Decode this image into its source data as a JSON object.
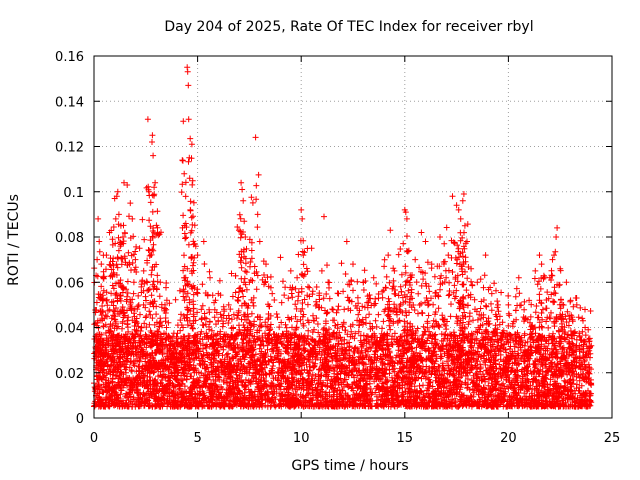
{
  "chart_data": {
    "type": "scatter",
    "title": "Day 204 of 2025, Rate Of TEC Index for receiver rbyl",
    "xlabel": "GPS time / hours",
    "ylabel": "ROTI / TECUs",
    "xlim": [
      0,
      25
    ],
    "ylim": [
      0,
      0.16
    ],
    "x_ticks": [
      0,
      5,
      10,
      15,
      20,
      25
    ],
    "x_tick_labels": [
      "0",
      "5",
      "10",
      "15",
      "20",
      "25"
    ],
    "y_ticks": [
      0,
      0.02,
      0.04,
      0.06,
      0.08,
      0.1,
      0.12,
      0.14,
      0.16
    ],
    "y_tick_labels": [
      "0",
      "0.02",
      "0.04",
      "0.06",
      "0.08",
      "0.1",
      "0.12",
      "0.14",
      "0.16"
    ],
    "grid": true,
    "marker": "+",
    "marker_color": "#ff0000",
    "data_x_range": [
      0,
      24
    ],
    "baseline_band": [
      0.005,
      0.03
    ],
    "series": [
      {
        "name": "ROTI",
        "points": [
          [
            0.1,
            0.063
          ],
          [
            0.15,
            0.07
          ],
          [
            0.2,
            0.088
          ],
          [
            0.25,
            0.078
          ],
          [
            0.35,
            0.068
          ],
          [
            0.45,
            0.062
          ],
          [
            0.6,
            0.072
          ],
          [
            0.75,
            0.082
          ],
          [
            0.9,
            0.079
          ],
          [
            1.0,
            0.097
          ],
          [
            1.05,
            0.088
          ],
          [
            1.1,
            0.098
          ],
          [
            1.15,
            0.1
          ],
          [
            1.2,
            0.09
          ],
          [
            1.3,
            0.085
          ],
          [
            1.4,
            0.08
          ],
          [
            1.45,
            0.104
          ],
          [
            1.6,
            0.103
          ],
          [
            1.75,
            0.095
          ],
          [
            1.85,
            0.088
          ],
          [
            2.0,
            0.07
          ],
          [
            2.2,
            0.075
          ],
          [
            2.4,
            0.065
          ],
          [
            2.6,
            0.132
          ],
          [
            2.65,
            0.1
          ],
          [
            2.8,
            0.122
          ],
          [
            2.82,
            0.125
          ],
          [
            2.85,
            0.116
          ],
          [
            2.9,
            0.102
          ],
          [
            2.95,
            0.104
          ],
          [
            3.0,
            0.081
          ],
          [
            3.2,
            0.06
          ],
          [
            3.5,
            0.04
          ],
          [
            3.8,
            0.032
          ],
          [
            4.0,
            0.035
          ],
          [
            4.3,
            0.04
          ],
          [
            4.5,
            0.155
          ],
          [
            4.52,
            0.153
          ],
          [
            4.55,
            0.147
          ],
          [
            4.57,
            0.132
          ],
          [
            4.6,
            0.115
          ],
          [
            4.62,
            0.106
          ],
          [
            4.65,
            0.092
          ],
          [
            4.7,
            0.058
          ],
          [
            5.0,
            0.072
          ],
          [
            5.3,
            0.078
          ],
          [
            5.6,
            0.062
          ],
          [
            6.0,
            0.055
          ],
          [
            6.5,
            0.05
          ],
          [
            7.0,
            0.083
          ],
          [
            7.1,
            0.104
          ],
          [
            7.15,
            0.101
          ],
          [
            7.2,
            0.096
          ],
          [
            7.25,
            0.087
          ],
          [
            7.3,
            0.08
          ],
          [
            7.5,
            0.06
          ],
          [
            7.8,
            0.124
          ],
          [
            7.9,
            0.09
          ],
          [
            8.0,
            0.078
          ],
          [
            8.3,
            0.068
          ],
          [
            8.6,
            0.055
          ],
          [
            9.0,
            0.071
          ],
          [
            9.5,
            0.065
          ],
          [
            9.8,
            0.062
          ],
          [
            10.0,
            0.092
          ],
          [
            10.05,
            0.088
          ],
          [
            10.1,
            0.072
          ],
          [
            10.5,
            0.075
          ],
          [
            11.0,
            0.065
          ],
          [
            11.1,
            0.089
          ],
          [
            11.3,
            0.06
          ],
          [
            11.8,
            0.055
          ],
          [
            12.2,
            0.078
          ],
          [
            12.5,
            0.068
          ],
          [
            13.0,
            0.06
          ],
          [
            13.5,
            0.062
          ],
          [
            14.0,
            0.067
          ],
          [
            14.2,
            0.072
          ],
          [
            14.3,
            0.083
          ],
          [
            14.5,
            0.065
          ],
          [
            14.8,
            0.058
          ],
          [
            15.0,
            0.092
          ],
          [
            15.05,
            0.091
          ],
          [
            15.1,
            0.088
          ],
          [
            15.2,
            0.074
          ],
          [
            15.5,
            0.07
          ],
          [
            15.8,
            0.082
          ],
          [
            16.0,
            0.078
          ],
          [
            16.3,
            0.068
          ],
          [
            16.7,
            0.08
          ],
          [
            16.9,
            0.077
          ],
          [
            17.1,
            0.072
          ],
          [
            17.3,
            0.098
          ],
          [
            17.5,
            0.094
          ],
          [
            17.6,
            0.092
          ],
          [
            17.7,
            0.088
          ],
          [
            17.8,
            0.096
          ],
          [
            17.85,
            0.099
          ],
          [
            17.9,
            0.085
          ],
          [
            18.0,
            0.078
          ],
          [
            18.2,
            0.066
          ],
          [
            18.5,
            0.06
          ],
          [
            18.9,
            0.072
          ],
          [
            19.2,
            0.055
          ],
          [
            19.5,
            0.05
          ],
          [
            20.0,
            0.05
          ],
          [
            20.5,
            0.062
          ],
          [
            21.0,
            0.052
          ],
          [
            21.3,
            0.065
          ],
          [
            21.5,
            0.072
          ],
          [
            21.6,
            0.068
          ],
          [
            22.0,
            0.062
          ],
          [
            22.2,
            0.072
          ],
          [
            22.3,
            0.08
          ],
          [
            22.35,
            0.084
          ],
          [
            22.5,
            0.066
          ],
          [
            22.8,
            0.06
          ],
          [
            23.0,
            0.052
          ],
          [
            23.3,
            0.05
          ],
          [
            23.7,
            0.04
          ]
        ]
      }
    ]
  }
}
